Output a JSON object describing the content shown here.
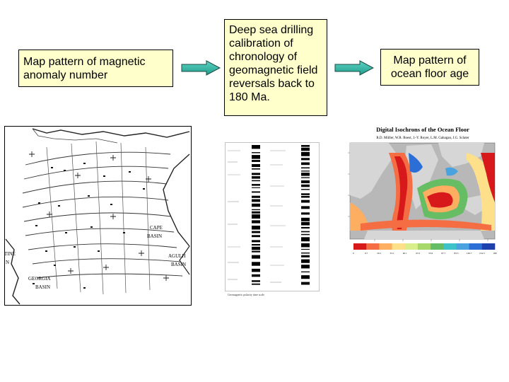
{
  "boxes": {
    "magnetic_anomaly": "Map pattern of magnetic anomaly number",
    "deep_sea_drilling": "Deep sea drilling calibration of chronology of geomagnetic field reversals back to 180 Ma.",
    "ocean_floor_age": "Map pattern of ocean floor age"
  },
  "anomaly_map": {
    "labels": [
      "TINE",
      "N",
      "CAPE",
      "BASIN",
      "AGULH",
      "BASIN",
      "GEORGIA",
      "BASIN"
    ]
  },
  "isochron_map": {
    "title": "Digital Isochrons of the Ocean Floor",
    "authors": "R.D. Müller, W.R. Roest, J.-Y. Royer, L.M. Gahagan, J.G. Sclater",
    "scale_ticks": [
      "0",
      "9.7",
      "20.1",
      "33.1",
      "40.1",
      "47.9",
      "55.9",
      "67.7",
      "83.5",
      "126.7",
      "154.3",
      "180"
    ],
    "colors": {
      "ocean_gray": "#b8b8b8",
      "land": "#cfcfcf",
      "scale": [
        "#d7191c",
        "#f46d43",
        "#fdae61",
        "#fee08b",
        "#d9ef8b",
        "#a6d96a",
        "#66bd63",
        "#3ec3c8",
        "#4aa3df",
        "#2b6fd6",
        "#1e3fae"
      ]
    }
  },
  "timescale": {
    "legend": "Geomagnetic polarity time scale"
  }
}
